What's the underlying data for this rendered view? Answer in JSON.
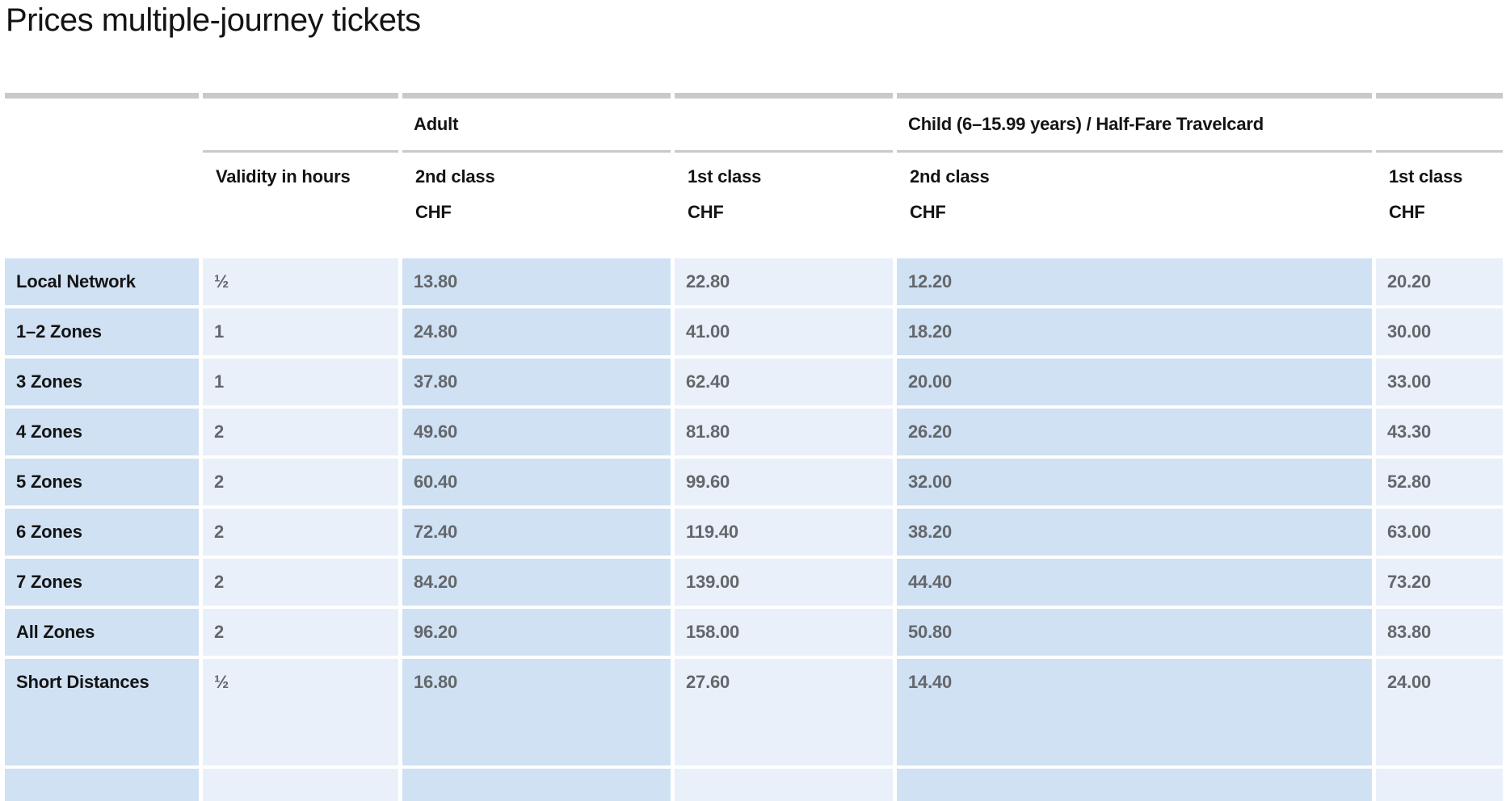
{
  "page": {
    "title": "Prices multiple-journey tickets"
  },
  "table": {
    "group_headers": {
      "adult": "Adult",
      "child": "Child (6–15.99 years) / Half-Fare Travelcard"
    },
    "column_headers": {
      "validity": "Validity in hours",
      "adult_2nd": {
        "class": "2nd class",
        "currency": "CHF"
      },
      "adult_1st": {
        "class": "1st class",
        "currency": "CHF"
      },
      "child_2nd": {
        "class": "2nd class",
        "currency": "CHF"
      },
      "child_1st": {
        "class": "1st class",
        "currency": "CHF"
      }
    },
    "rows": [
      {
        "label": "Local Network",
        "validity": "½",
        "adult_2nd": "13.80",
        "adult_1st": "22.80",
        "child_2nd": "12.20",
        "child_1st": "20.20"
      },
      {
        "label": "1–2 Zones",
        "validity": "1",
        "adult_2nd": "24.80",
        "adult_1st": "41.00",
        "child_2nd": "18.20",
        "child_1st": "30.00"
      },
      {
        "label": "3 Zones",
        "validity": "1",
        "adult_2nd": "37.80",
        "adult_1st": "62.40",
        "child_2nd": "20.00",
        "child_1st": "33.00"
      },
      {
        "label": "4 Zones",
        "validity": "2",
        "adult_2nd": "49.60",
        "adult_1st": "81.80",
        "child_2nd": "26.20",
        "child_1st": "43.30"
      },
      {
        "label": "5 Zones",
        "validity": "2",
        "adult_2nd": "60.40",
        "adult_1st": "99.60",
        "child_2nd": "32.00",
        "child_1st": "52.80"
      },
      {
        "label": "6 Zones",
        "validity": "2",
        "adult_2nd": "72.40",
        "adult_1st": "119.40",
        "child_2nd": "38.20",
        "child_1st": "63.00"
      },
      {
        "label": "7 Zones",
        "validity": "2",
        "adult_2nd": "84.20",
        "adult_1st": "139.00",
        "child_2nd": "44.40",
        "child_1st": "73.20"
      },
      {
        "label": "All Zones",
        "validity": "2",
        "adult_2nd": "96.20",
        "adult_1st": "158.00",
        "child_2nd": "50.80",
        "child_1st": "83.80"
      },
      {
        "label": "Short Distances",
        "validity": "½",
        "adult_2nd": "16.80",
        "adult_1st": "27.60",
        "child_2nd": "14.40",
        "child_1st": "24.00"
      }
    ],
    "colors": {
      "cell_dark_blue": "#cfe1f3",
      "cell_light_blue": "#e9f0f9",
      "rule_gray": "#c9c9c9",
      "value_text_gray": "#64676b",
      "label_text_black": "#141414"
    }
  }
}
